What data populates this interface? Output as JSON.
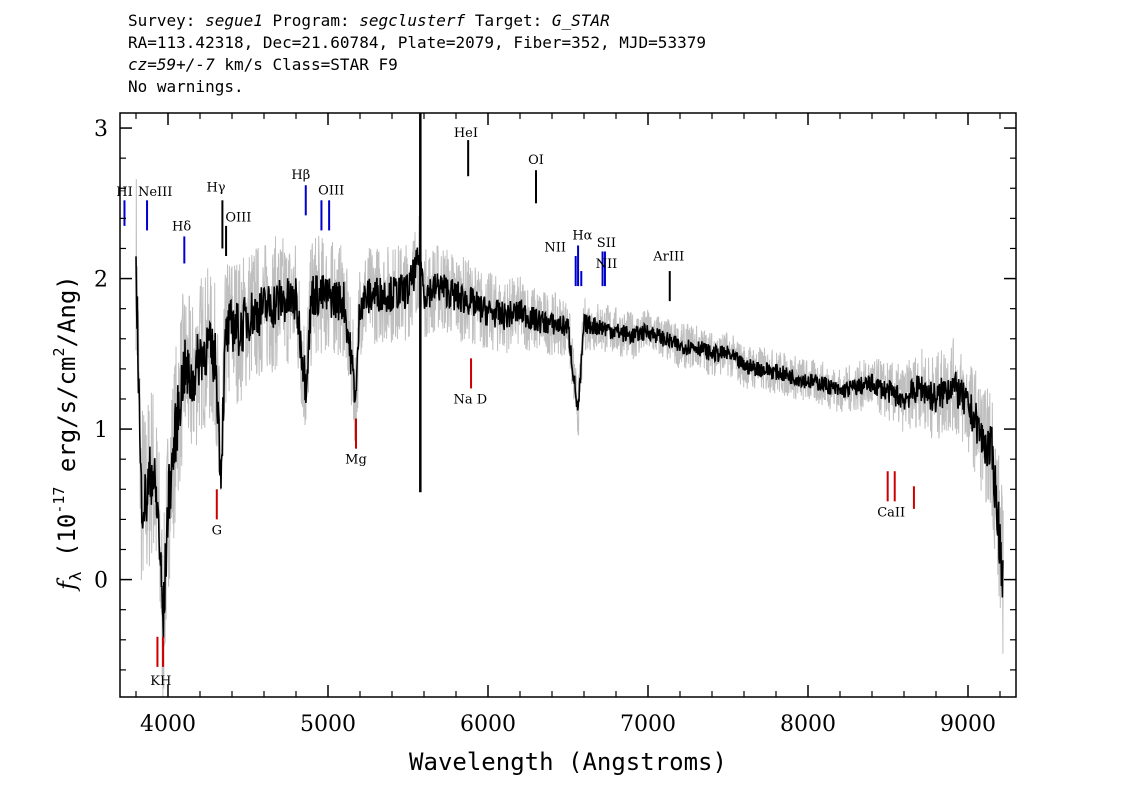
{
  "header": {
    "survey_label": "Survey:",
    "survey": "segue1",
    "program_label": "Program:",
    "program": "segclusterf",
    "target_label": "Target:",
    "target": "G_STAR",
    "line2": "RA=113.42318, Dec=21.60784, Plate=2079, Fiber=352, MJD=53379",
    "cz": "cz=59+/-7",
    "cz_rest": " km/s Class=STAR F9",
    "line4": "No warnings."
  },
  "chart_data": {
    "type": "line",
    "xlabel": "Wavelength (Angstroms)",
    "ylabel": "f_λ (10^-17 erg/s/cm^2/Ang)",
    "xlim": [
      3700,
      9300
    ],
    "ylim": [
      -0.78,
      3.1
    ],
    "xticks": [
      4000,
      5000,
      6000,
      7000,
      8000,
      9000
    ],
    "yticks": [
      0,
      1,
      2,
      3
    ],
    "series": [
      {
        "role": "flux",
        "color": "#000000",
        "x": [
          3800,
          3830,
          3860,
          3900,
          3940,
          3970,
          4000,
          4050,
          4100,
          4150,
          4200,
          4250,
          4300,
          4330,
          4360,
          4400,
          4450,
          4500,
          4600,
          4700,
          4800,
          4861,
          4900,
          5000,
          5100,
          5175,
          5200,
          5300,
          5400,
          5500,
          5577,
          5600,
          5700,
          5800,
          5890,
          5950,
          6000,
          6100,
          6200,
          6300,
          6400,
          6500,
          6563,
          6600,
          6700,
          6800,
          6900,
          7000,
          7100,
          7200,
          7300,
          7400,
          7500,
          7600,
          7700,
          7800,
          7900,
          8000,
          8100,
          8200,
          8300,
          8400,
          8500,
          8600,
          8700,
          8800,
          8900,
          9000,
          9050,
          9100,
          9150,
          9200,
          9220
        ],
        "y": [
          2.2,
          0.6,
          0.5,
          0.75,
          0.4,
          -0.32,
          0.5,
          1.0,
          1.4,
          1.3,
          1.5,
          1.55,
          1.45,
          0.7,
          1.6,
          1.7,
          1.65,
          1.75,
          1.8,
          1.85,
          1.85,
          1.3,
          1.9,
          1.88,
          1.85,
          1.2,
          1.85,
          1.9,
          1.9,
          1.92,
          2.15,
          1.9,
          1.95,
          1.88,
          1.85,
          1.8,
          1.78,
          1.75,
          1.78,
          1.72,
          1.7,
          1.68,
          1.1,
          1.7,
          1.68,
          1.65,
          1.62,
          1.65,
          1.6,
          1.55,
          1.55,
          1.5,
          1.5,
          1.42,
          1.4,
          1.38,
          1.35,
          1.32,
          1.3,
          1.25,
          1.28,
          1.3,
          1.25,
          1.2,
          1.28,
          1.2,
          1.3,
          1.15,
          1.05,
          0.9,
          0.85,
          0.25,
          0.0
        ]
      },
      {
        "role": "error",
        "color": "#bfbfbf",
        "x": [
          3800,
          3900,
          4000,
          4100,
          4200,
          4300,
          4400,
          4500,
          4600,
          4700,
          4800,
          4900,
          5000,
          5100,
          5200,
          5300,
          5400,
          5500,
          5600,
          5700,
          5800,
          5900,
          6000,
          6200,
          6400,
          6600,
          6800,
          7000,
          7200,
          7400,
          7600,
          7800,
          8000,
          8200,
          8400,
          8600,
          8800,
          9000,
          9100,
          9200
        ],
        "y": [
          0.45,
          0.42,
          0.4,
          0.38,
          0.36,
          0.34,
          0.34,
          0.32,
          0.3,
          0.3,
          0.28,
          0.28,
          0.26,
          0.25,
          0.24,
          0.22,
          0.22,
          0.22,
          0.2,
          0.2,
          0.2,
          0.18,
          0.18,
          0.16,
          0.14,
          0.12,
          0.11,
          0.1,
          0.1,
          0.1,
          0.1,
          0.1,
          0.1,
          0.1,
          0.12,
          0.15,
          0.2,
          0.22,
          0.25,
          0.35
        ]
      }
    ],
    "emission_lines": [
      {
        "name": "HI",
        "wave": 3728,
        "color": "#0000cc"
      },
      {
        "name": "NeIII",
        "wave": 3869,
        "color": "#0000cc"
      },
      {
        "name": "Hδ",
        "wave": 4102,
        "color": "#0000cc"
      },
      {
        "name": "Hγ",
        "wave": 4340,
        "color": "#000000"
      },
      {
        "name": "OIII",
        "wave": 4363,
        "color": "#000000"
      },
      {
        "name": "Hβ",
        "wave": 4861,
        "color": "#0000cc"
      },
      {
        "name": "OIII",
        "wave": 4959,
        "color": "#0000cc"
      },
      {
        "name": "OIII",
        "wave": 5007,
        "color": "#0000cc"
      },
      {
        "name": "HeI",
        "wave": 5876,
        "color": "#000000"
      },
      {
        "name": "OI",
        "wave": 6300,
        "color": "#000000"
      },
      {
        "name": "NII",
        "wave": 6548,
        "color": "#0000cc"
      },
      {
        "name": "Hα",
        "wave": 6563,
        "color": "#0000cc"
      },
      {
        "name": "NII",
        "wave": 6583,
        "color": "#0000cc"
      },
      {
        "name": "SII",
        "wave": 6716,
        "color": "#0000cc"
      },
      {
        "name": "SII",
        "wave": 6731,
        "color": "#0000cc"
      },
      {
        "name": "ArIII",
        "wave": 7136,
        "color": "#000000"
      }
    ],
    "absorption_lines": [
      {
        "name": "K",
        "wave": 3934,
        "color": "#cc0000"
      },
      {
        "name": "H",
        "wave": 3969,
        "color": "#cc0000"
      },
      {
        "name": "G",
        "wave": 4305,
        "color": "#cc0000"
      },
      {
        "name": "Mg",
        "wave": 5175,
        "color": "#cc0000"
      },
      {
        "name": "Na D",
        "wave": 5894,
        "color": "#cc0000"
      },
      {
        "name": "CaII",
        "wave": 8498,
        "color": "#cc0000"
      },
      {
        "name": "CaII",
        "wave": 8542,
        "color": "#cc0000"
      },
      {
        "name": "CaII",
        "wave": 8662,
        "color": "#cc0000"
      }
    ],
    "line_labels": {
      "HI": "HI",
      "NeIII": "NeIII",
      "Hdelta": "Hδ",
      "Hgamma": "Hγ",
      "OIII_a": "OIII",
      "Hbeta": "Hβ",
      "OIII_b": "OIII",
      "HeI": "HeI",
      "OI": "OI",
      "NII_a": "NII",
      "Halpha": "Hα",
      "SII": "SII",
      "NII_b": "NII",
      "ArIII": "ArIII",
      "KH": "KH",
      "G": "G",
      "Mg": "Mg",
      "NaD": "Na D",
      "CaII": "CaII"
    }
  }
}
